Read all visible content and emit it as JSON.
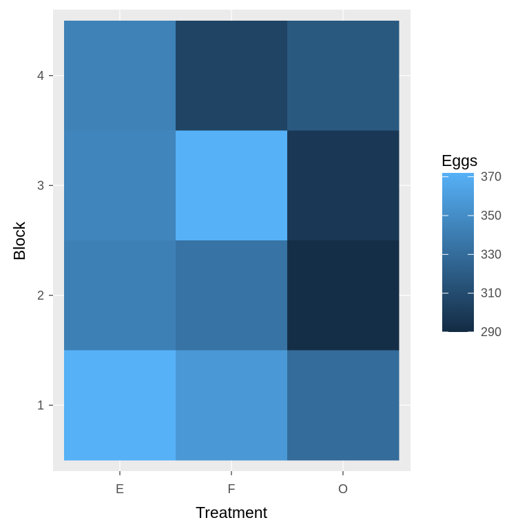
{
  "chart_data": {
    "type": "heatmap",
    "xlabel": "Treatment",
    "ylabel": "Block",
    "x_categories": [
      "E",
      "F",
      "O"
    ],
    "y_categories": [
      "1",
      "2",
      "3",
      "4"
    ],
    "cells": [
      {
        "x": "E",
        "y": "4",
        "value": 343
      },
      {
        "x": "F",
        "y": "4",
        "value": 305
      },
      {
        "x": "O",
        "y": "4",
        "value": 318
      },
      {
        "x": "E",
        "y": "3",
        "value": 345
      },
      {
        "x": "F",
        "y": "3",
        "value": 372
      },
      {
        "x": "O",
        "y": "3",
        "value": 298
      },
      {
        "x": "E",
        "y": "2",
        "value": 342
      },
      {
        "x": "F",
        "y": "2",
        "value": 334
      },
      {
        "x": "O",
        "y": "2",
        "value": 292
      },
      {
        "x": "E",
        "y": "1",
        "value": 372
      },
      {
        "x": "F",
        "y": "1",
        "value": 357
      },
      {
        "x": "O",
        "y": "1",
        "value": 330
      }
    ],
    "legend": {
      "title": "Eggs",
      "ticks": [
        370,
        350,
        330,
        310,
        290
      ],
      "placement": "right"
    },
    "color_scale": {
      "low": "#132b43",
      "high": "#56b1f7"
    },
    "value_range": [
      290,
      372
    ]
  }
}
